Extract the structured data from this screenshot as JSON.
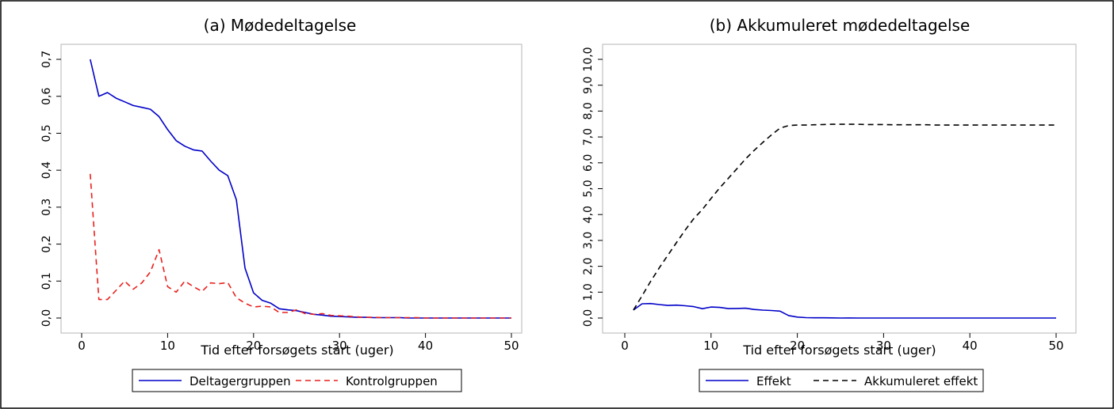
{
  "chart_data": [
    {
      "type": "line",
      "title": "(a) Mødedeltagelse",
      "xlabel": "Tid efter forsøgets start (uger)",
      "ylabel": "",
      "xlim": [
        0,
        50
      ],
      "ylim": [
        0,
        0.7
      ],
      "xticks": [
        0,
        10,
        20,
        30,
        40,
        50
      ],
      "xtick_labels": [
        "0",
        "10",
        "20",
        "30",
        "40",
        "50"
      ],
      "yticks": [
        0,
        0.1,
        0.2,
        0.3,
        0.4,
        0.5,
        0.6,
        0.7
      ],
      "ytick_labels": [
        "0,0",
        "0,1",
        "0,2",
        "0,3",
        "0,4",
        "0,5",
        "0,6",
        "0,7"
      ],
      "grid": false,
      "legend_position": "bottom",
      "series": [
        {
          "name": "Deltagergruppen",
          "color": "#0000c8",
          "dash": "solid",
          "x": [
            1,
            2,
            3,
            4,
            5,
            6,
            7,
            8,
            9,
            10,
            11,
            12,
            13,
            14,
            15,
            16,
            17,
            18,
            19,
            20,
            21,
            22,
            23,
            24,
            25,
            26,
            27,
            28,
            29,
            30,
            31,
            32,
            33,
            34,
            35,
            36,
            37,
            38,
            39,
            40,
            41,
            42,
            43,
            44,
            45,
            46,
            47,
            48,
            49,
            50
          ],
          "y": [
            0.7,
            0.6,
            0.61,
            0.595,
            0.585,
            0.575,
            0.57,
            0.565,
            0.545,
            0.51,
            0.48,
            0.465,
            0.455,
            0.452,
            0.425,
            0.4,
            0.385,
            0.32,
            0.135,
            0.068,
            0.048,
            0.04,
            0.025,
            0.022,
            0.02,
            0.015,
            0.01,
            0.008,
            0.005,
            0.004,
            0.003,
            0.002,
            0.002,
            0.001,
            0.001,
            0.001,
            0.001,
            0,
            0,
            0,
            0,
            0,
            0,
            0,
            0,
            0,
            0,
            0,
            0,
            0
          ]
        },
        {
          "name": "Kontrolgruppen",
          "color": "#e8201c",
          "dash": "dashed",
          "x": [
            1,
            2,
            3,
            4,
            5,
            6,
            7,
            8,
            9,
            10,
            11,
            12,
            13,
            14,
            15,
            16,
            17,
            18,
            19,
            20,
            21,
            22,
            23,
            24,
            25,
            26,
            27,
            28,
            29,
            30,
            31,
            32,
            33,
            34,
            35,
            36,
            37,
            38,
            39,
            40,
            41,
            42,
            43,
            44,
            45,
            46,
            47,
            48,
            49,
            50
          ],
          "y": [
            0.39,
            0.05,
            0.05,
            0.075,
            0.1,
            0.078,
            0.095,
            0.125,
            0.185,
            0.085,
            0.07,
            0.1,
            0.085,
            0.072,
            0.095,
            0.093,
            0.096,
            0.055,
            0.04,
            0.03,
            0.032,
            0.03,
            0.015,
            0.015,
            0.022,
            0.012,
            0.01,
            0.012,
            0.007,
            0.006,
            0.005,
            0.003,
            0.002,
            0.002,
            0.001,
            0.001,
            0.001,
            0.001,
            0.001,
            0,
            0,
            0,
            0,
            0,
            0,
            0,
            0,
            0,
            0,
            0
          ]
        }
      ]
    },
    {
      "type": "line",
      "title": "(b) Akkumuleret mødedeltagelse",
      "xlabel": "Tid efter forsøgets start (uger)",
      "ylabel": "",
      "xlim": [
        0,
        50
      ],
      "ylim": [
        0,
        10
      ],
      "xticks": [
        0,
        10,
        20,
        30,
        40,
        50
      ],
      "xtick_labels": [
        "0",
        "10",
        "20",
        "30",
        "40",
        "50"
      ],
      "yticks": [
        0,
        1,
        2,
        3,
        4,
        5,
        6,
        7,
        8,
        9,
        10
      ],
      "ytick_labels": [
        "0,0",
        "1,0",
        "2,0",
        "3,0",
        "4,0",
        "5,0",
        "6,0",
        "7,0",
        "8,0",
        "9,0",
        "10,0"
      ],
      "grid": false,
      "legend_position": "bottom",
      "series": [
        {
          "name": "Effekt",
          "color": "#0000c8",
          "dash": "solid",
          "x": [
            1,
            2,
            3,
            4,
            5,
            6,
            7,
            8,
            9,
            10,
            11,
            12,
            13,
            14,
            15,
            16,
            17,
            18,
            19,
            20,
            21,
            22,
            23,
            24,
            25,
            26,
            27,
            28,
            29,
            30,
            31,
            32,
            33,
            34,
            35,
            36,
            37,
            38,
            39,
            40,
            41,
            42,
            43,
            44,
            45,
            46,
            47,
            48,
            49,
            50
          ],
          "y": [
            0.31,
            0.55,
            0.56,
            0.52,
            0.485,
            0.497,
            0.475,
            0.44,
            0.36,
            0.425,
            0.41,
            0.365,
            0.37,
            0.38,
            0.33,
            0.307,
            0.289,
            0.265,
            0.095,
            0.038,
            0.016,
            0.01,
            0.01,
            0.007,
            0,
            0.003,
            0,
            0,
            0,
            0,
            0,
            0,
            0,
            0,
            0,
            0,
            0,
            0,
            0,
            0,
            0,
            0,
            0,
            0,
            0,
            0,
            0,
            0,
            0,
            0
          ]
        },
        {
          "name": "Akkumuleret effekt",
          "color": "#000000",
          "dash": "dashed",
          "x": [
            1,
            2,
            3,
            4,
            5,
            6,
            7,
            8,
            9,
            10,
            11,
            12,
            13,
            14,
            15,
            16,
            17,
            18,
            19,
            20,
            21,
            22,
            23,
            24,
            25,
            26,
            27,
            28,
            29,
            30,
            31,
            32,
            33,
            34,
            35,
            36,
            37,
            38,
            39,
            40,
            41,
            42,
            43,
            44,
            45,
            46,
            47,
            48,
            49,
            50
          ],
          "y": [
            0.31,
            0.86,
            1.42,
            1.94,
            2.43,
            2.92,
            3.4,
            3.84,
            4.2,
            4.62,
            5.03,
            5.4,
            5.77,
            6.15,
            6.48,
            6.79,
            7.08,
            7.34,
            7.44,
            7.46,
            7.46,
            7.47,
            7.48,
            7.49,
            7.49,
            7.49,
            7.49,
            7.48,
            7.48,
            7.48,
            7.47,
            7.47,
            7.47,
            7.47,
            7.47,
            7.46,
            7.46,
            7.46,
            7.46,
            7.46,
            7.46,
            7.46,
            7.46,
            7.46,
            7.46,
            7.46,
            7.46,
            7.46,
            7.46,
            7.46
          ]
        }
      ]
    }
  ]
}
